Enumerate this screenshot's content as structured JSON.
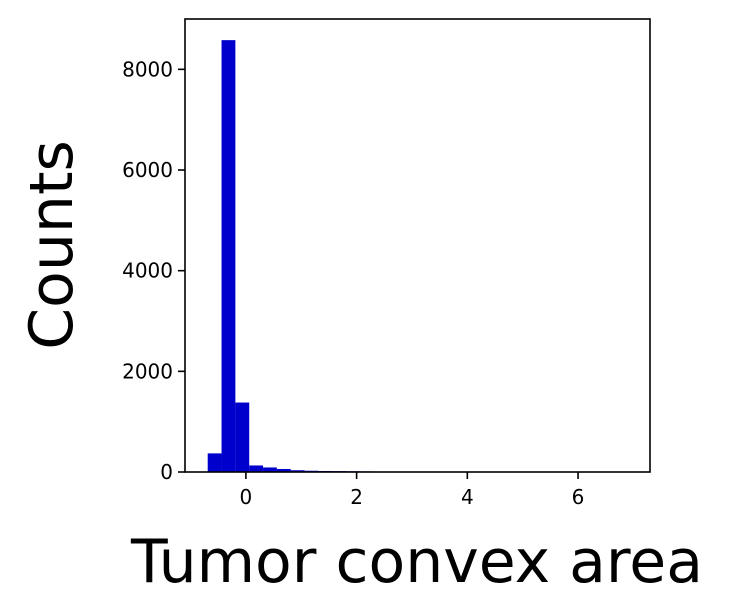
{
  "chart_data": {
    "type": "bar",
    "title": "",
    "xlabel": "Tumor convex area",
    "ylabel": "Counts",
    "xlim": [
      -1.1,
      7.3
    ],
    "ylim": [
      0,
      9000
    ],
    "xticks": [
      0,
      2,
      4,
      6
    ],
    "yticks": [
      0,
      2000,
      4000,
      6000,
      8000
    ],
    "bar_color": "#0000cc",
    "grid": false,
    "legend": "none",
    "bin_edges": [
      -0.69,
      -0.44,
      -0.19,
      0.06,
      0.31,
      0.56,
      0.81,
      1.06,
      1.31,
      1.56,
      1.81,
      2.06,
      2.31,
      2.56,
      2.81,
      3.06,
      3.31,
      3.56,
      3.81,
      4.06,
      4.31,
      4.56,
      4.81,
      5.06,
      5.31,
      5.56,
      5.81,
      6.06,
      6.31,
      6.56,
      6.81
    ],
    "values": [
      370,
      8580,
      1380,
      130,
      90,
      60,
      35,
      25,
      20,
      18,
      15,
      12,
      10,
      10,
      8,
      8,
      8,
      7,
      6,
      6,
      5,
      5,
      5,
      5,
      4,
      4,
      3,
      3,
      3,
      2
    ]
  }
}
